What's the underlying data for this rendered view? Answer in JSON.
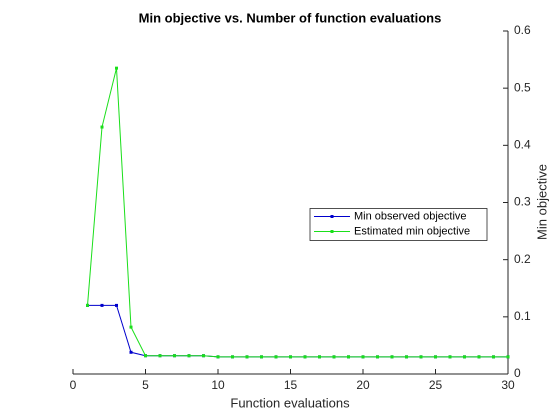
{
  "chart_data": {
    "type": "line",
    "title": "Min objective vs. Number of function evaluations",
    "x_label": "Function evaluations",
    "y_label": "Min objective",
    "x": [
      1,
      2,
      3,
      4,
      5,
      6,
      7,
      8,
      9,
      10,
      11,
      12,
      13,
      14,
      15,
      16,
      17,
      18,
      19,
      20,
      21,
      22,
      23,
      24,
      25,
      26,
      27,
      28,
      29,
      30
    ],
    "series": [
      {
        "name": "Min observed objective",
        "color": "#0000cc",
        "values": [
          0.12,
          0.12,
          0.12,
          0.038,
          0.032,
          0.032,
          0.032,
          0.032,
          0.032,
          0.03,
          0.03,
          0.03,
          0.03,
          0.03,
          0.03,
          0.03,
          0.03,
          0.03,
          0.03,
          0.03,
          0.03,
          0.03,
          0.03,
          0.03,
          0.03,
          0.03,
          0.03,
          0.03,
          0.03,
          0.03
        ]
      },
      {
        "name": "Estimated min objective",
        "color": "#1adf1a",
        "values": [
          0.12,
          0.432,
          0.535,
          0.082,
          0.032,
          0.032,
          0.032,
          0.032,
          0.032,
          0.03,
          0.03,
          0.03,
          0.03,
          0.03,
          0.03,
          0.03,
          0.03,
          0.03,
          0.03,
          0.03,
          0.03,
          0.03,
          0.03,
          0.03,
          0.03,
          0.03,
          0.03,
          0.03,
          0.03,
          0.03
        ]
      }
    ],
    "xlim": [
      0,
      30
    ],
    "xticks": [
      0,
      5,
      10,
      15,
      20,
      25,
      30
    ],
    "ylim": [
      0,
      0.6
    ],
    "yticks": [
      0,
      0.1,
      0.2,
      0.3,
      0.4,
      0.5,
      0.6
    ],
    "y_axis_side": "right",
    "legend": "east"
  }
}
